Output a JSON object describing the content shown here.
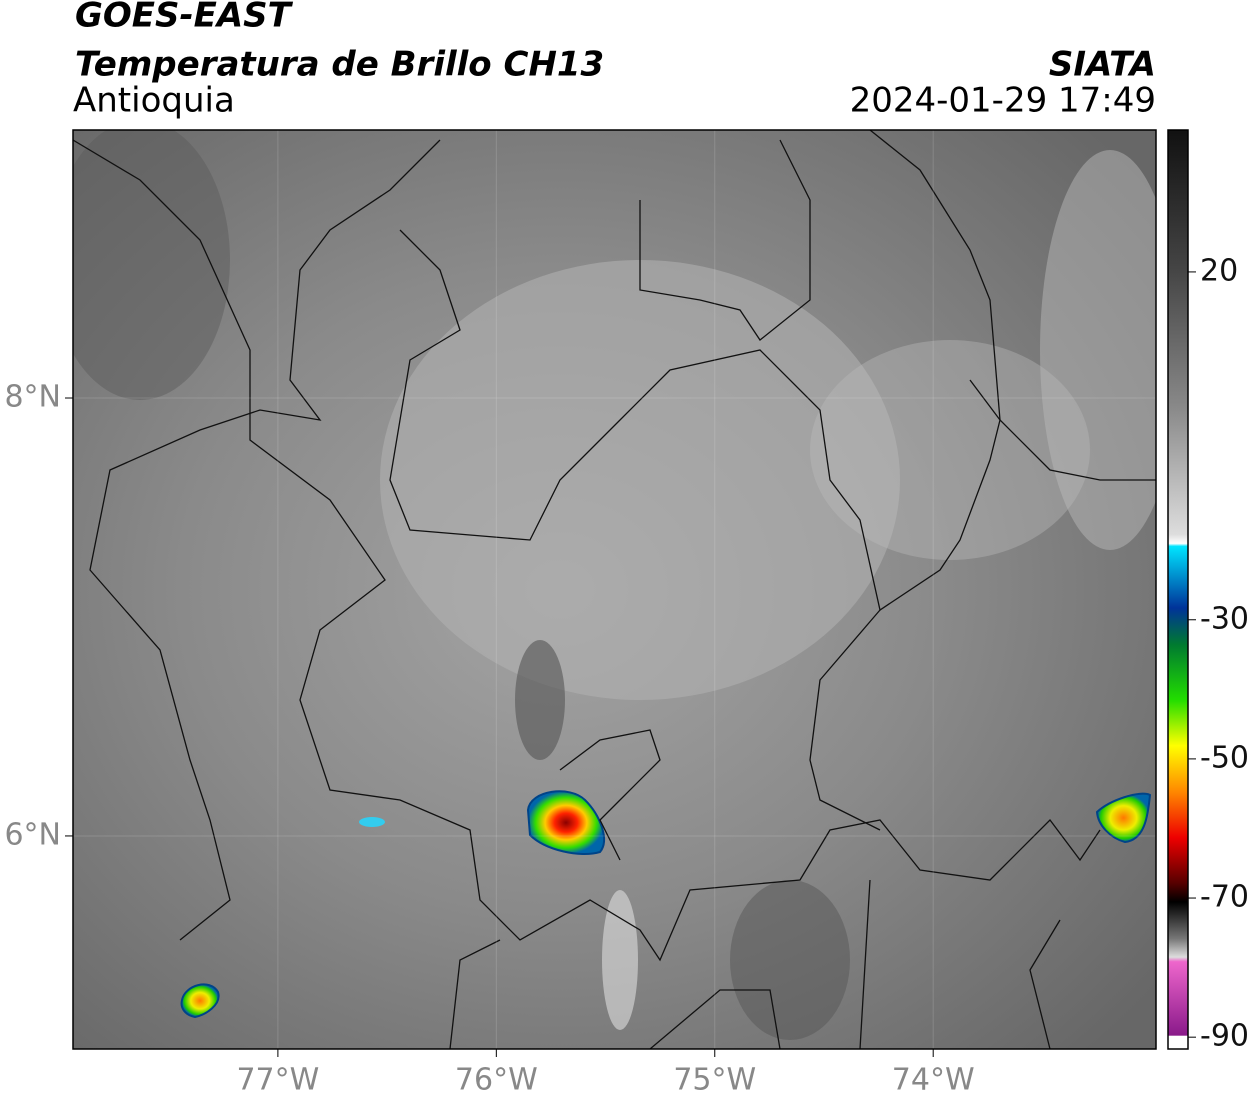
{
  "header": {
    "title": "GOES-EAST",
    "subtitle": "Temperatura de Brillo CH13",
    "region": "Antioquia",
    "source": "SIATA",
    "datetime": "2024-01-29 17:49"
  },
  "map": {
    "xlim": [
      -77.938,
      -72.98
    ],
    "ylim": [
      5.027,
      9.224
    ],
    "xticks": [
      {
        "value": -77,
        "label": "77°W"
      },
      {
        "value": -76,
        "label": "76°W"
      },
      {
        "value": -75,
        "label": "75°W"
      },
      {
        "value": -74,
        "label": "74°W"
      }
    ],
    "yticks": [
      {
        "value": 8,
        "label": "8°N"
      },
      {
        "value": 6,
        "label": "6°N"
      }
    ]
  },
  "colorbar": {
    "lim": [
      -91.7,
      40.4
    ],
    "ticks": [
      20,
      -30,
      -50,
      -70,
      -90
    ]
  }
}
